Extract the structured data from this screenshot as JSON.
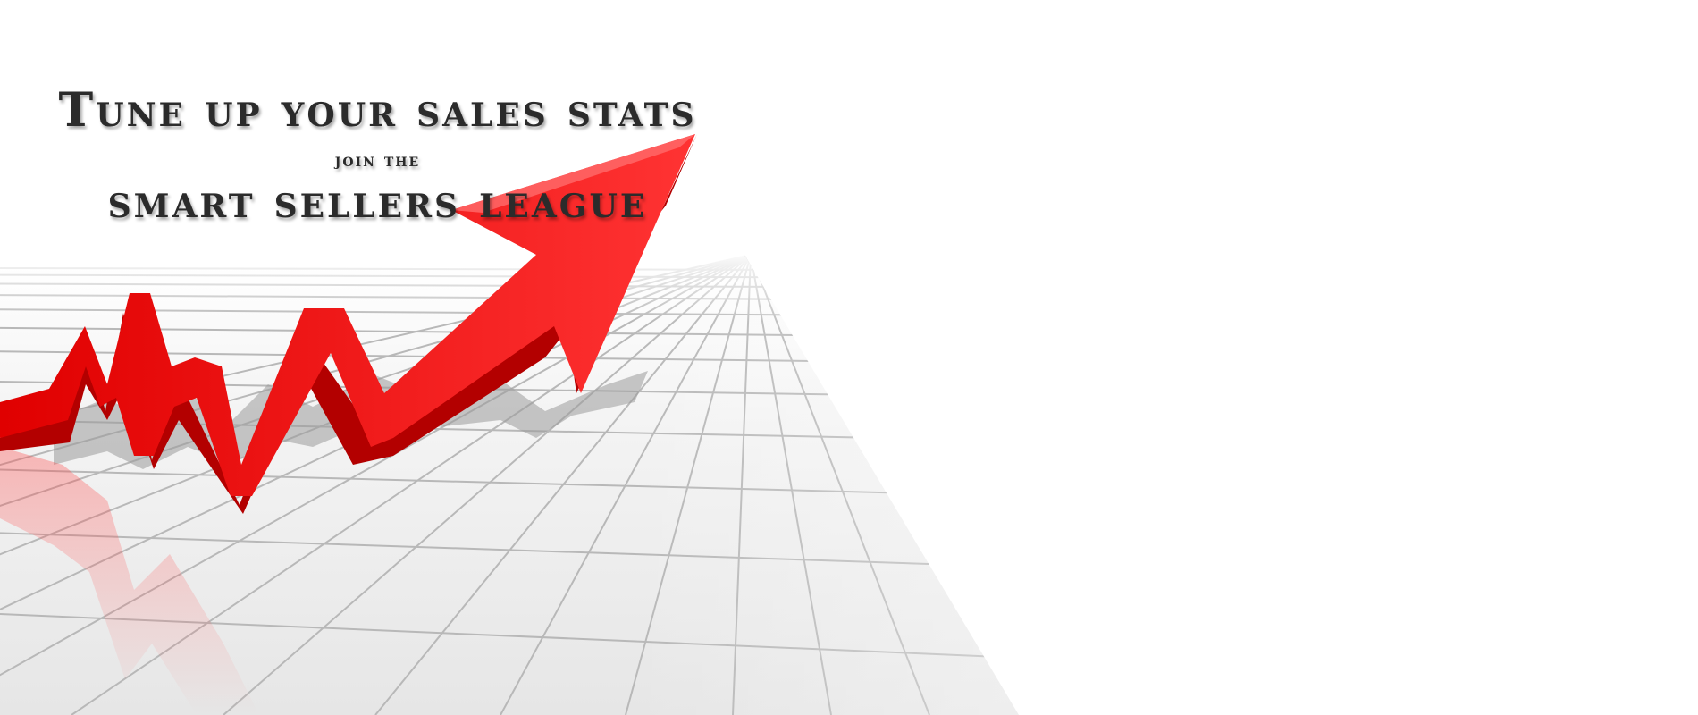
{
  "banner": {
    "headline": "Tune up your sales stats",
    "subline": "join the",
    "league_name": "smart sellers league"
  },
  "artwork": {
    "subject": "red-rising-arrow-graphic",
    "arrow_color": "#ff1a1a",
    "grid_color": "#b8b8b8",
    "floor_color": "#ececec"
  }
}
